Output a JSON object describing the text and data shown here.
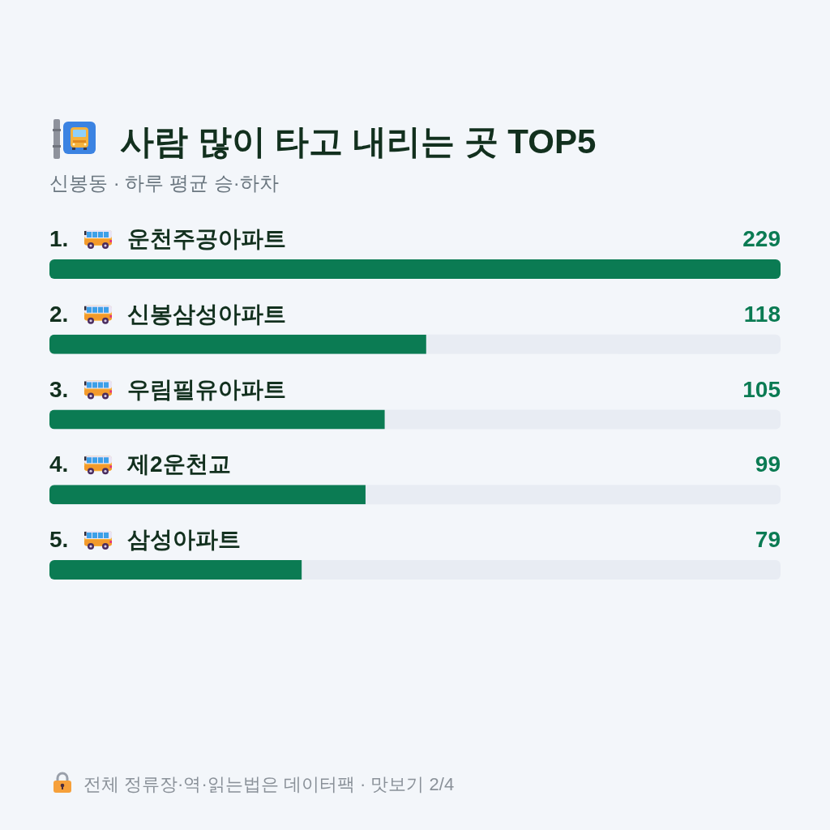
{
  "chart_data": {
    "type": "bar",
    "orientation": "horizontal",
    "title": "사람 많이 타고 내리는 곳 TOP5",
    "subtitle": "신봉동 · 하루 평균 승·하차",
    "categories": [
      "1. 운천주공아파트",
      "2. 신봉삼성아파트",
      "3. 우림필유아파트",
      "4. 제2운천교",
      "5. 삼성아파트"
    ],
    "values": [
      229,
      118,
      105,
      99,
      79
    ],
    "color": "#0b7b53",
    "xlim": [
      0,
      229
    ],
    "data_labels": true,
    "annotations": [
      "전체 정류장·역·읽는법은 데이터팩 · 맛보기 2/4"
    ]
  }
}
